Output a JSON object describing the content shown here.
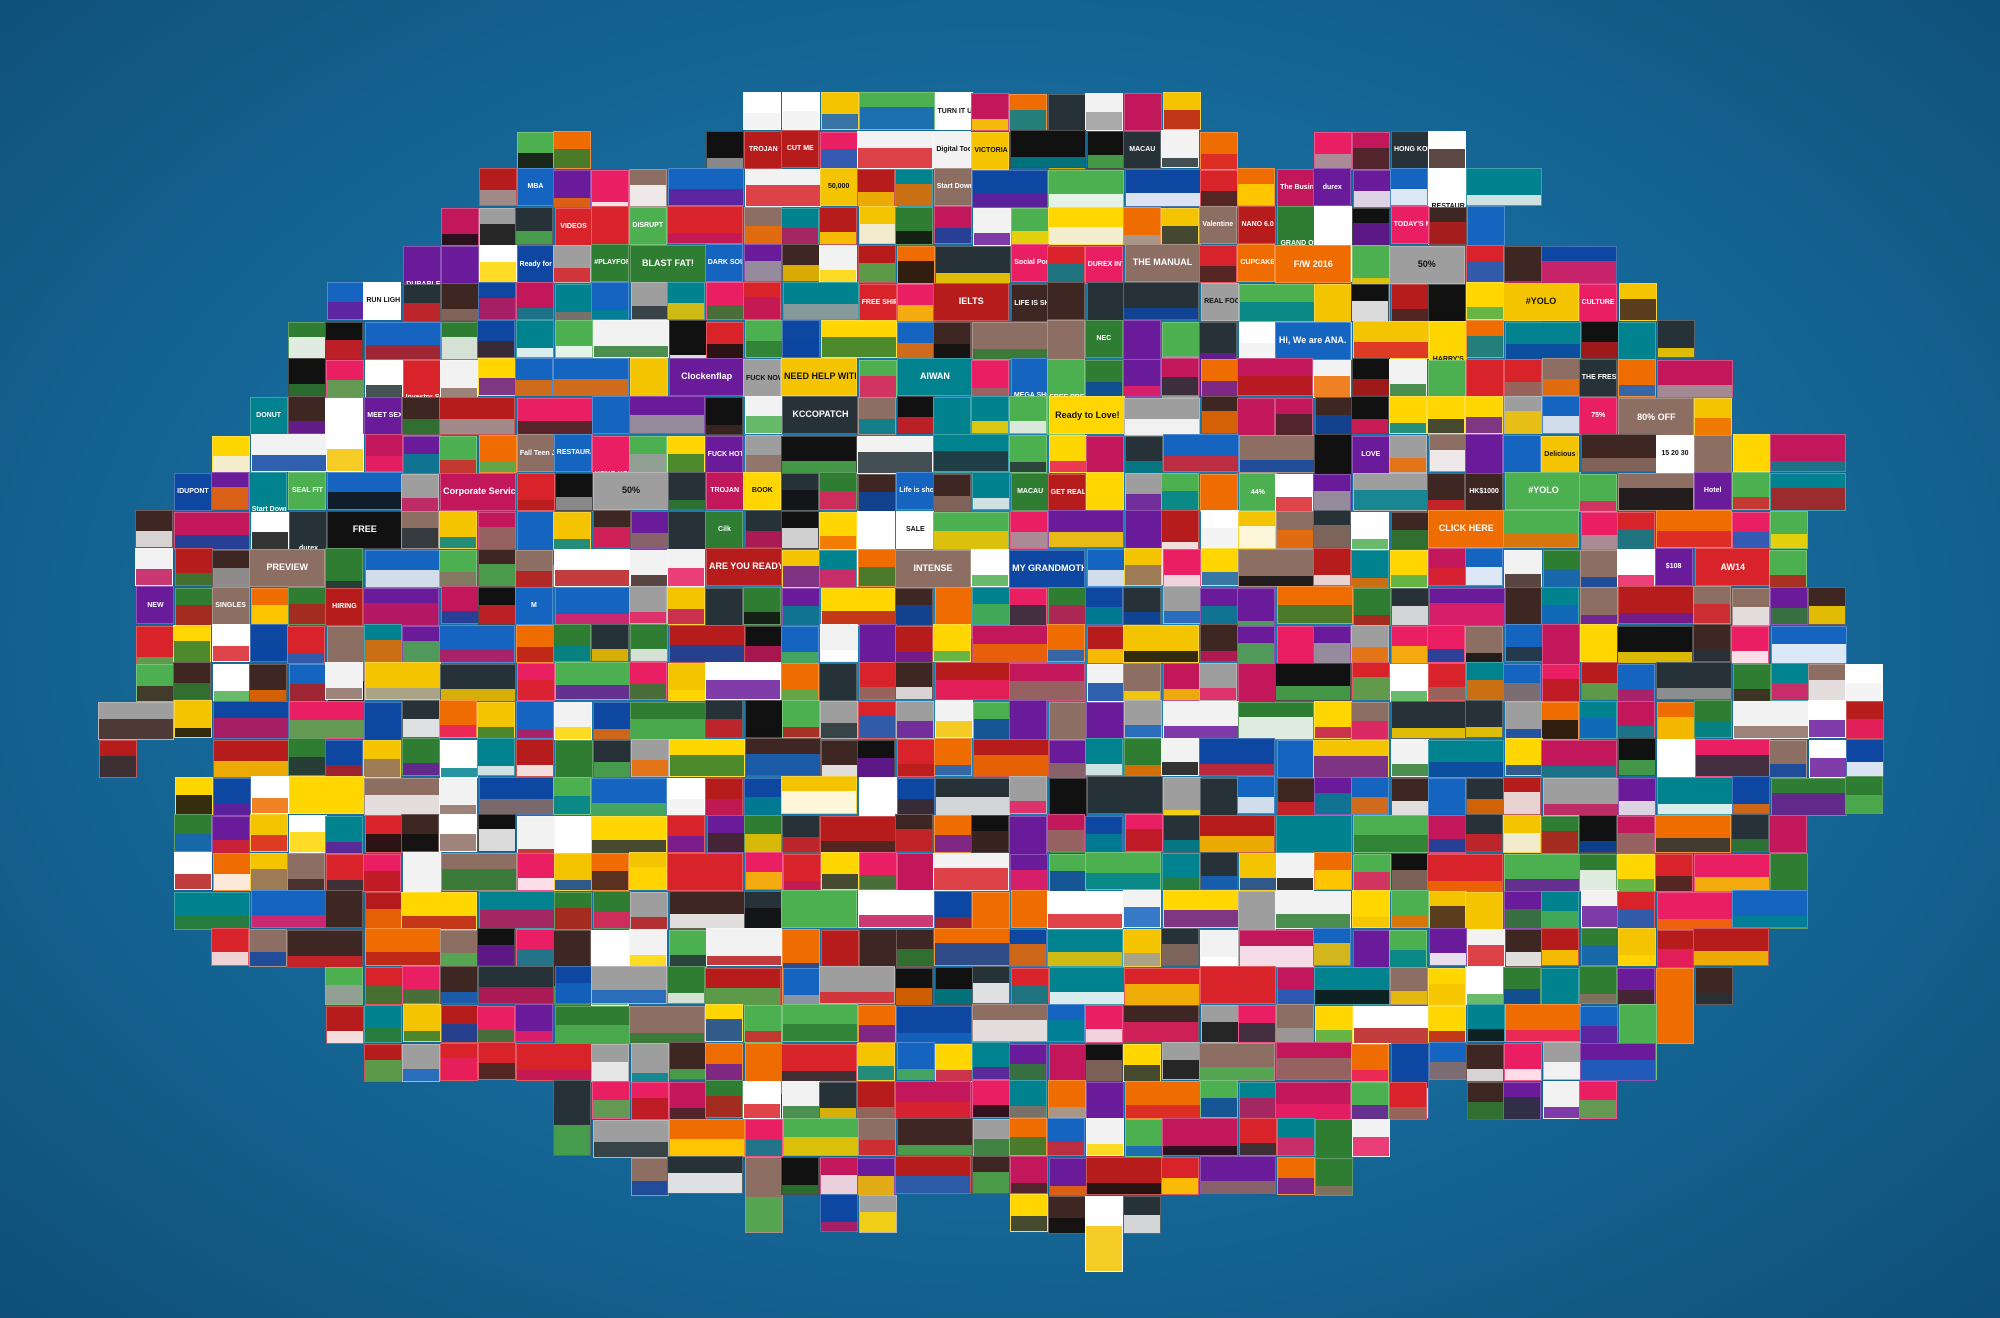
{
  "collage": {
    "background": "#1a75aa",
    "palette": [
      "#111111",
      "#f2f2f2",
      "#d8232a",
      "#1565c0",
      "#f5c400",
      "#2e7d32",
      "#6a1b9a",
      "#ef6c00",
      "#c2185b",
      "#00838f",
      "#3e2723",
      "#ffffff",
      "#263238",
      "#e91e63",
      "#0d47a1",
      "#ffd600",
      "#8d6e63",
      "#b71c1c",
      "#4caf50",
      "#9e9e9e"
    ],
    "ad_labels": [
      "TURN IT UP",
      "TROJAN",
      "CUT ME",
      "Digital Tools Catalog",
      "VICTORIA'S SECRET",
      "MACAU",
      "HONG KONG",
      "MBA",
      "50,000",
      "Start Download",
      "The Business Enabler",
      "durex",
      "RESTAURANT TAKEOVER",
      "VIDEOS",
      "DISRUPT",
      "Valentine",
      "NANO 6.0",
      "GRAND OPENING SPECIAL",
      "TODAY'S MACAO",
      "DURABLE",
      "Ready for Love!",
      "#PLAYFORMORE",
      "BLAST FAT!",
      "DARK SOULS III",
      "Social Porn",
      "DUREX INVISIBLE",
      "THE MANUAL",
      "CUPCAKES & GRENADES",
      "F/W 2016",
      "50%",
      "RUN LIGHT. RUN LIGHT.",
      "FREE SHIPPING & RETURNS",
      "IELTS",
      "LIFE IS SHORT. HAVE AN AFFAIR.",
      "REAL FOOD. REAL RESULTS.",
      "#YOLO",
      "CULTURE CLASH",
      "NEC",
      "Hi, We are ANA.",
      "HARRY'S",
      "Investor Services",
      "Clockenflap",
      "FUCK NOW",
      "NEED HELP WITH YOUR RESUME?",
      "AIWAN",
      "MEGA SHOW",
      "FREE PREVIEW",
      "THE FRESHMAN CLASS",
      "DONUT",
      "MEET SEXY WIVES",
      "KCCOPATCH",
      "Ready to Love!",
      "75%",
      "80% OFF",
      "Fall Teen Job",
      "RESTAURANT TAKEOVER",
      "HONG KONG",
      "FUCK HOT",
      "LOVE",
      "Delicious Deal!",
      "15 20 30",
      "IDUPONT",
      "Start Download",
      "SEAL FIT",
      "Corporate Services",
      "50%",
      "TROJAN",
      "BOOK",
      "Life is short. Have an affair.",
      "MACAU",
      "GET REAL",
      "44%",
      "HK$1000",
      "#YOLO",
      "Hotel",
      "durex",
      "FREE",
      "Cilk",
      "SALE",
      "CLICK HERE",
      "PREVIEW",
      "ARE YOU READY FOR DIGITAL GROWTH",
      "INTENSE",
      "MY GRANDMOTHER'S RAVIOLI",
      "$108",
      "AW14",
      "NEW",
      "SINGLES",
      "HIRING",
      "M"
    ]
  }
}
